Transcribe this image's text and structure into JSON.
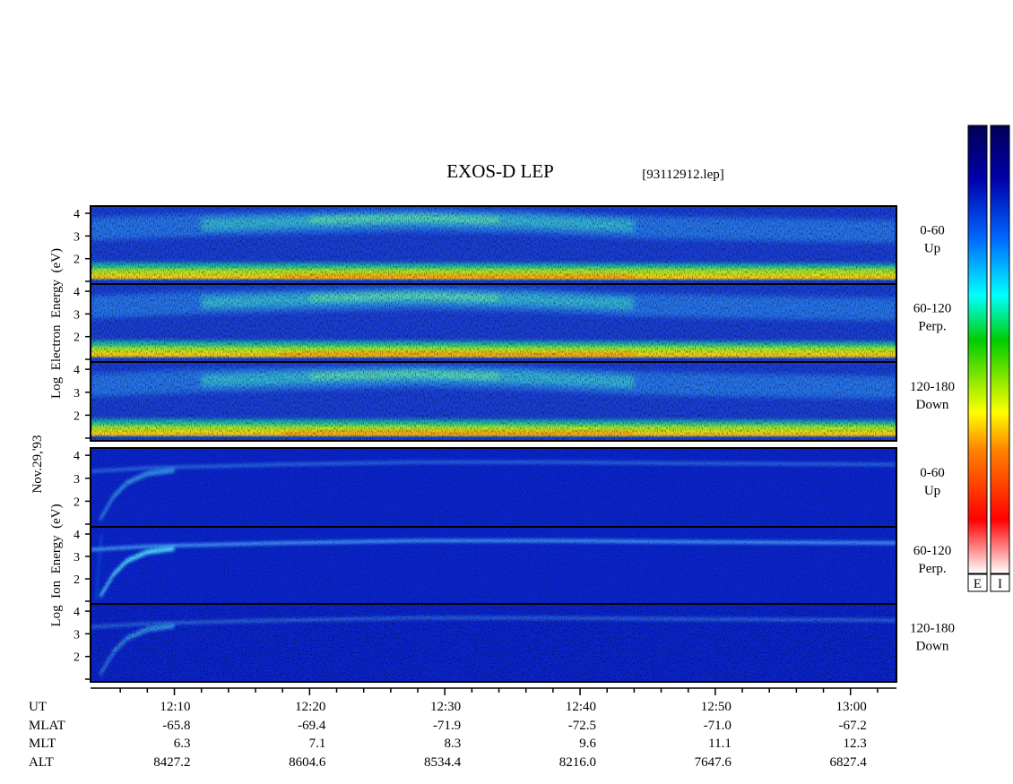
{
  "header": {
    "title": "EXOS-D LEP",
    "file": "[93112912.lep]"
  },
  "date_label": "Nov.29,'93",
  "colorbar": {
    "labels": [
      "E",
      "I"
    ],
    "stops": [
      "#ffffff",
      "#ff0000",
      "#ff8800",
      "#ffff00",
      "#00cc00",
      "#00ffff",
      "#0066ff",
      "#0000aa",
      "#000055"
    ]
  },
  "groups": [
    {
      "ylabel_words": [
        "Electron",
        "Energy",
        "(eV)",
        "Log"
      ],
      "channels": [
        {
          "label1": "0-60",
          "label2": "Up"
        },
        {
          "label1": "60-120",
          "label2": "Perp."
        },
        {
          "label1": "120-180",
          "label2": "Down"
        }
      ]
    },
    {
      "ylabel_words": [
        "Ion",
        "Energy",
        "(eV)",
        "Log"
      ],
      "channels": [
        {
          "label1": "0-60",
          "label2": "Up"
        },
        {
          "label1": "60-120",
          "label2": "Perp."
        },
        {
          "label1": "120-180",
          "label2": "Down"
        }
      ]
    }
  ],
  "footer": {
    "row_labels": [
      "UT",
      "MLAT",
      "MLT",
      "ALT"
    ]
  },
  "chart_data": {
    "type": "heatmap",
    "title": "EXOS-D LEP",
    "ylabel": "Log Energy (eV)",
    "yticks": [
      "4",
      "3",
      "2",
      "1"
    ],
    "ylim": [
      1,
      4.2
    ],
    "x_times": [
      "12:10",
      "12:20",
      "12:30",
      "12:40",
      "12:50",
      "13:00"
    ],
    "x_ticks_minutes": [
      10,
      20,
      30,
      40,
      50,
      60
    ],
    "xlim_minutes": [
      3.8,
      63.4
    ],
    "minor_tick_step_minutes": 2,
    "mlat": [
      "-65.8",
      "-69.4",
      "-71.9",
      "-72.5",
      "-71.0",
      "-67.2"
    ],
    "mlt": [
      "6.3",
      "7.1",
      "8.3",
      "9.6",
      "11.1",
      "12.3"
    ],
    "alt": [
      "8427.2",
      "8604.6",
      "8534.4",
      "8216.0",
      "7647.6",
      "6827.4"
    ],
    "panels": [
      {
        "species": "Electron",
        "pitch": "0-60 Up"
      },
      {
        "species": "Electron",
        "pitch": "60-120 Perp."
      },
      {
        "species": "Electron",
        "pitch": "120-180 Down"
      },
      {
        "species": "Ion",
        "pitch": "0-60 Up"
      },
      {
        "species": "Ion",
        "pitch": "60-120 Perp."
      },
      {
        "species": "Ion",
        "pitch": "120-180 Down"
      }
    ]
  }
}
